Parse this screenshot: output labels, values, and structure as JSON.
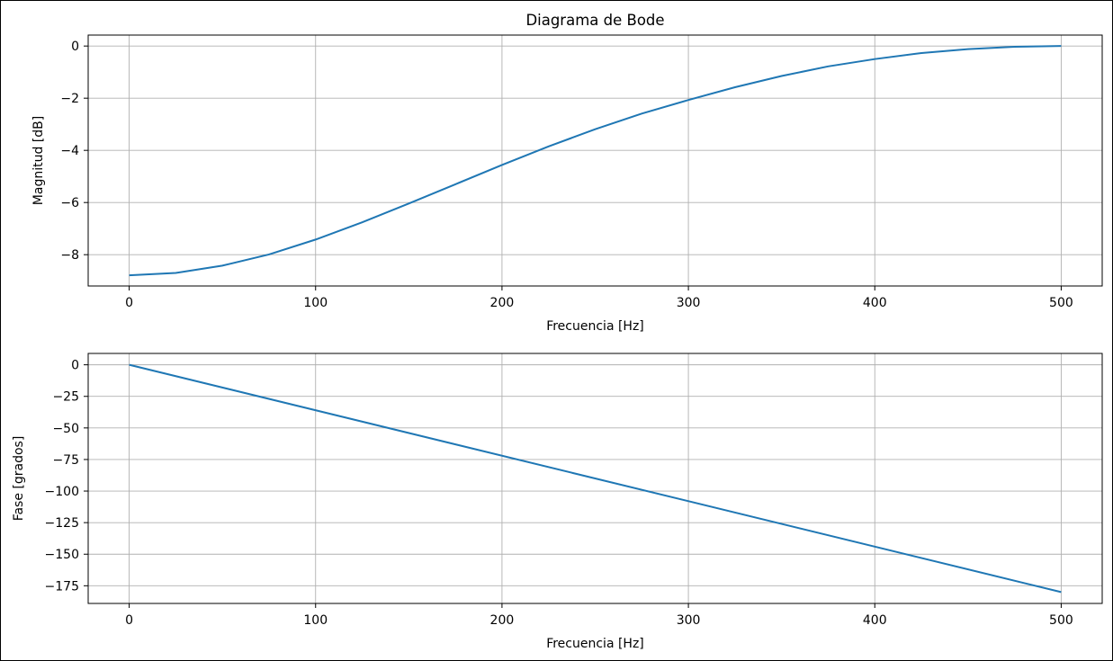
{
  "figure": {
    "title": "Diagrama de Bode"
  },
  "chart_data": [
    {
      "type": "line",
      "title": "Diagrama de Bode",
      "xlabel": "Frecuencia [Hz]",
      "ylabel": "Magnitud [dB]",
      "xlim": [
        -22,
        522
      ],
      "ylim": [
        -9.2,
        0.42
      ],
      "xticks": [
        0,
        100,
        200,
        300,
        400,
        500
      ],
      "xtick_labels": [
        "0",
        "100",
        "200",
        "300",
        "400",
        "500"
      ],
      "yticks": [
        0,
        -2,
        -4,
        -6,
        -8
      ],
      "ytick_labels": [
        "0",
        "−2",
        "−4",
        "−6",
        "−8"
      ],
      "grid": true,
      "color": "#1f77b4",
      "series": [
        {
          "x": [
            0,
            25,
            50,
            75,
            100,
            125,
            150,
            175,
            200,
            225,
            250,
            275,
            300,
            325,
            350,
            375,
            400,
            425,
            450,
            475,
            500
          ],
          "y": [
            -8.79,
            -8.7,
            -8.42,
            -7.99,
            -7.42,
            -6.76,
            -6.04,
            -5.3,
            -4.56,
            -3.85,
            -3.19,
            -2.59,
            -2.07,
            -1.58,
            -1.15,
            -0.78,
            -0.5,
            -0.27,
            -0.12,
            -0.03,
            0.0
          ]
        }
      ]
    },
    {
      "type": "line",
      "title": "",
      "xlabel": "Frecuencia [Hz]",
      "ylabel": "Fase [grados]",
      "xlim": [
        -22,
        522
      ],
      "ylim": [
        -189,
        9
      ],
      "xticks": [
        0,
        100,
        200,
        300,
        400,
        500
      ],
      "xtick_labels": [
        "0",
        "100",
        "200",
        "300",
        "400",
        "500"
      ],
      "yticks": [
        0,
        -25,
        -50,
        -75,
        -100,
        -125,
        -150,
        -175
      ],
      "ytick_labels": [
        "0",
        "−25",
        "−50",
        "−75",
        "−100",
        "−125",
        "−150",
        "−175"
      ],
      "grid": true,
      "color": "#1f77b4",
      "series": [
        {
          "x": [
            0,
            500
          ],
          "y": [
            0,
            -180
          ]
        }
      ]
    }
  ]
}
